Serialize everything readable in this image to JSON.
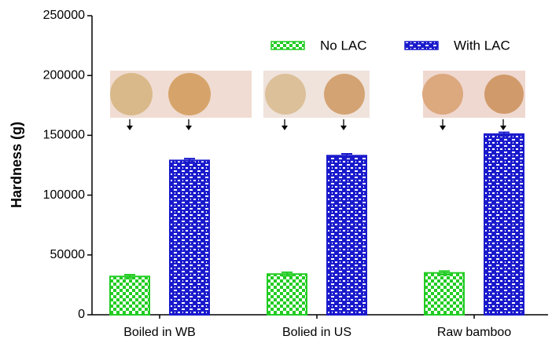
{
  "chart_data": {
    "type": "bar",
    "y_label": "Hardness (g)",
    "categories": [
      "Boiled in WB",
      "Bolied in US",
      "Raw bamboo"
    ],
    "series": [
      {
        "name": "No LAC",
        "color": "#22cc22",
        "values": [
          32000,
          34000,
          35000
        ],
        "errors": [
          1500,
          1500,
          1500
        ]
      },
      {
        "name": "With LAC",
        "color": "#1a1acc",
        "values": [
          129000,
          133000,
          151000
        ],
        "errors": [
          1500,
          1500,
          1500
        ]
      }
    ],
    "ylim": [
      0,
      250000
    ],
    "yticks": [
      0,
      50000,
      100000,
      150000,
      200000,
      250000
    ]
  }
}
